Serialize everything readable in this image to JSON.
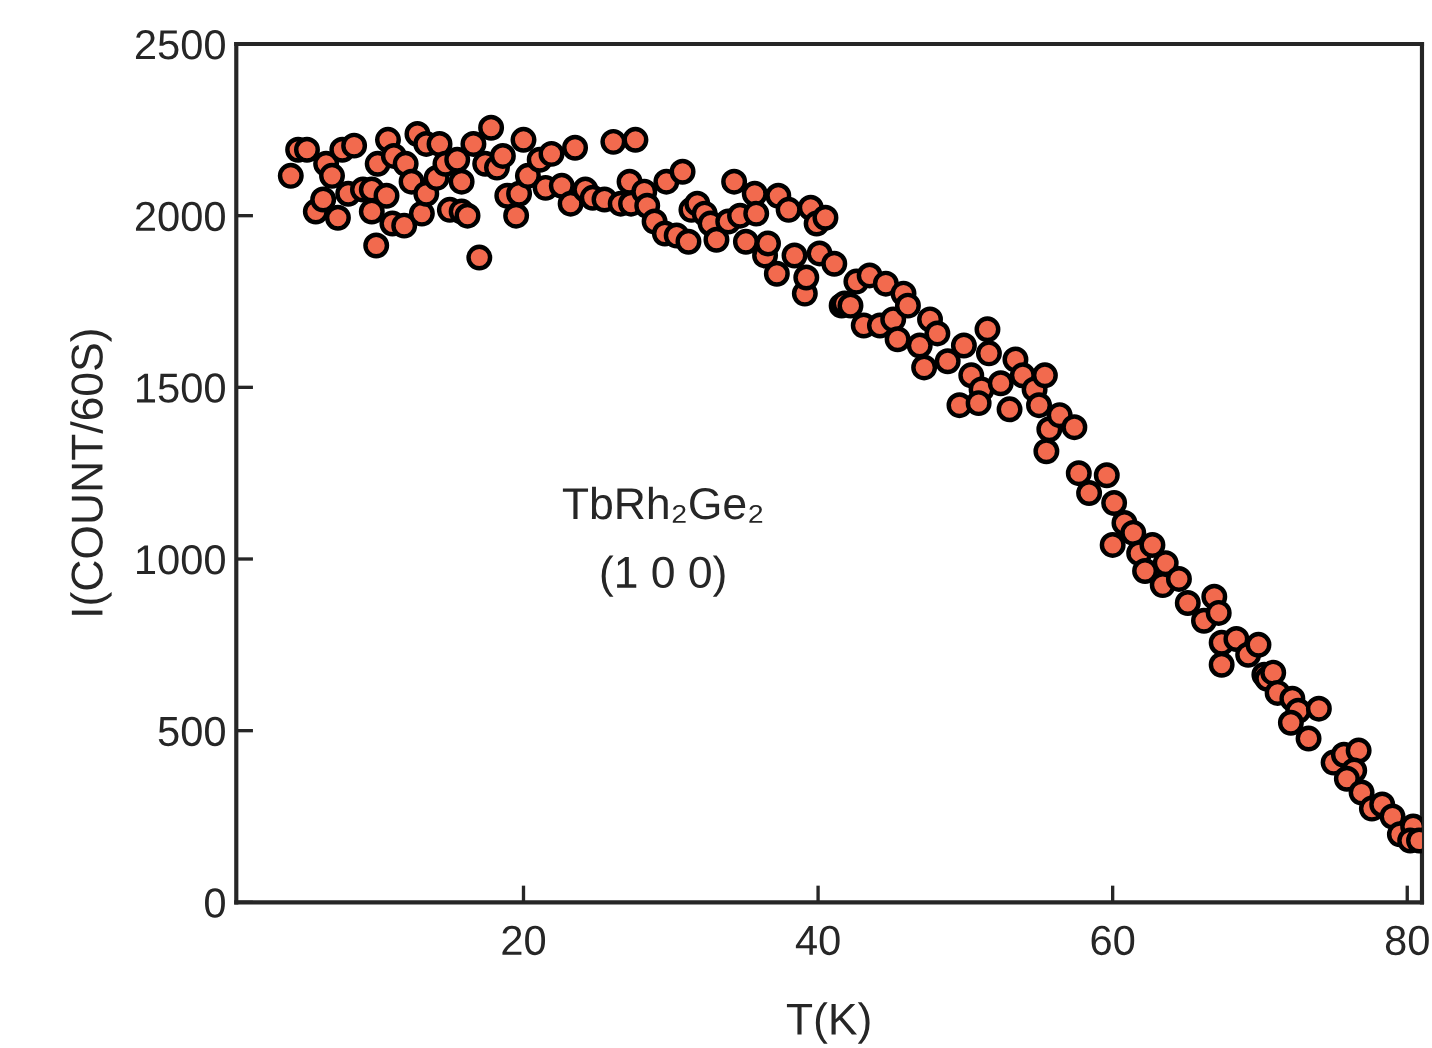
{
  "chart_data": {
    "type": "scatter",
    "xlabel": "T(K)",
    "ylabel": "I(COUNT/60S)",
    "annotations": [
      "TbRh₂Ge₂",
      "(1 0 0)"
    ],
    "marker": "circle",
    "color": "#f26a4e",
    "xlim": [
      0.5,
      81
    ],
    "ylim": [
      0,
      2500
    ],
    "xticks": [
      20,
      40,
      60,
      80
    ],
    "yticks": [
      0,
      500,
      1000,
      1500,
      2000,
      2500
    ],
    "x": [
      4.2,
      4.7,
      5.3,
      5.9,
      6.4,
      6.6,
      7.0,
      7.4,
      7.7,
      8.5,
      8.1,
      9.1,
      9.7,
      9.7,
      10.0,
      10.1,
      10.7,
      10.8,
      11.2,
      11.1,
      11.9,
      12.0,
      12.4,
      12.8,
      13.1,
      13.4,
      13.4,
      14.1,
      14.3,
      14.7,
      15.0,
      15.5,
      15.8,
      15.8,
      16.2,
      16.6,
      17.0,
      17.4,
      17.8,
      18.2,
      18.6,
      18.9,
      19.5,
      19.7,
      20.0,
      20.3,
      21.1,
      21.5,
      21.9,
      22.6,
      23.2,
      23.5,
      24.2,
      24.7,
      25.5,
      26.1,
      26.6,
      27.2,
      27.3,
      27.6,
      28.2,
      28.4,
      28.9,
      29.6,
      29.7,
      30.4,
      30.8,
      31.2,
      31.4,
      31.8,
      32.3,
      32.7,
      33.1,
      33.9,
      34.3,
      34.7,
      35.1,
      35.7,
      35.8,
      36.4,
      36.6,
      37.2,
      37.3,
      38.0,
      38.4,
      39.1,
      39.2,
      39.5,
      39.9,
      40.1,
      40.5,
      41.1,
      41.6,
      41.8,
      42.2,
      42.6,
      43.1,
      43.5,
      44.2,
      44.6,
      45.1,
      45.4,
      45.8,
      46.1,
      46.9,
      47.2,
      47.6,
      48.1,
      48.8,
      49.6,
      49.9,
      50.4,
      51.1,
      50.9,
      51.5,
      51.6,
      52.4,
      53.0,
      53.4,
      53.9,
      54.7,
      55.0,
      55.4,
      55.7,
      55.5,
      56.4,
      57.4,
      57.7,
      58.4,
      59.6,
      60.1,
      60.0,
      60.8,
      61.4,
      61.8,
      62.7,
      62.2,
      63.4,
      63.6,
      64.5,
      65.1,
      66.2,
      66.9,
      67.2,
      67.4,
      68.4,
      69.2,
      69.9,
      67.4,
      70.3,
      70.5,
      70.9,
      71.2,
      72.2,
      72.6,
      72.1,
      74.0,
      73.3,
      75.0,
      75.7,
      76.7,
      76.4,
      75.9,
      76.9,
      77.6,
      78.3,
      79.0,
      79.5,
      80.4,
      80.2,
      80.8
    ],
    "values": [
      2116,
      2192,
      2192,
      2012,
      2047,
      2151,
      2116,
      1994,
      2192,
      2204,
      2064,
      2076,
      2076,
      2012,
      1913,
      2151,
      2058,
      2221,
      2174,
      1977,
      1971,
      2151,
      2099,
      2238,
      2006,
      2064,
      2209,
      2110,
      2209,
      2151,
      2017,
      2163,
      2099,
      2012,
      2000,
      2209,
      1878,
      2151,
      2256,
      2140,
      2174,
      2058,
      2000,
      2064,
      2221,
      2116,
      2163,
      2081,
      2180,
      2087,
      2035,
      2198,
      2076,
      2052,
      2047,
      2215,
      2035,
      2099,
      2035,
      2221,
      2070,
      2029,
      1983,
      1948,
      2099,
      1942,
      2128,
      1924,
      2017,
      2035,
      2006,
      1977,
      1930,
      1983,
      2099,
      2000,
      1924,
      2064,
      2006,
      1884,
      1919,
      1831,
      2058,
      2017,
      1884,
      1773,
      1820,
      2023,
      1977,
      1890,
      1994,
      1860,
      1738,
      1744,
      1738,
      1808,
      1680,
      1826,
      1680,
      1802,
      1698,
      1640,
      1773,
      1738,
      1622,
      1558,
      1698,
      1657,
      1576,
      1448,
      1622,
      1535,
      1494,
      1454,
      1669,
      1599,
      1512,
      1436,
      1581,
      1535,
      1494,
      1448,
      1535,
      1378,
      1314,
      1419,
      1384,
      1250,
      1192,
      1244,
      1163,
      1041,
      1105,
      1076,
      1017,
      1041,
      965,
      924,
      988,
      942,
      872,
      820,
      890,
      843,
      756,
      767,
      721,
      750,
      692,
      663,
      651,
      669,
      610,
      593,
      558,
      523,
      564,
      477,
      407,
      430,
      442,
      384,
      360,
      320,
      273,
      285,
      250,
      198,
      221,
      180,
      180
    ]
  }
}
